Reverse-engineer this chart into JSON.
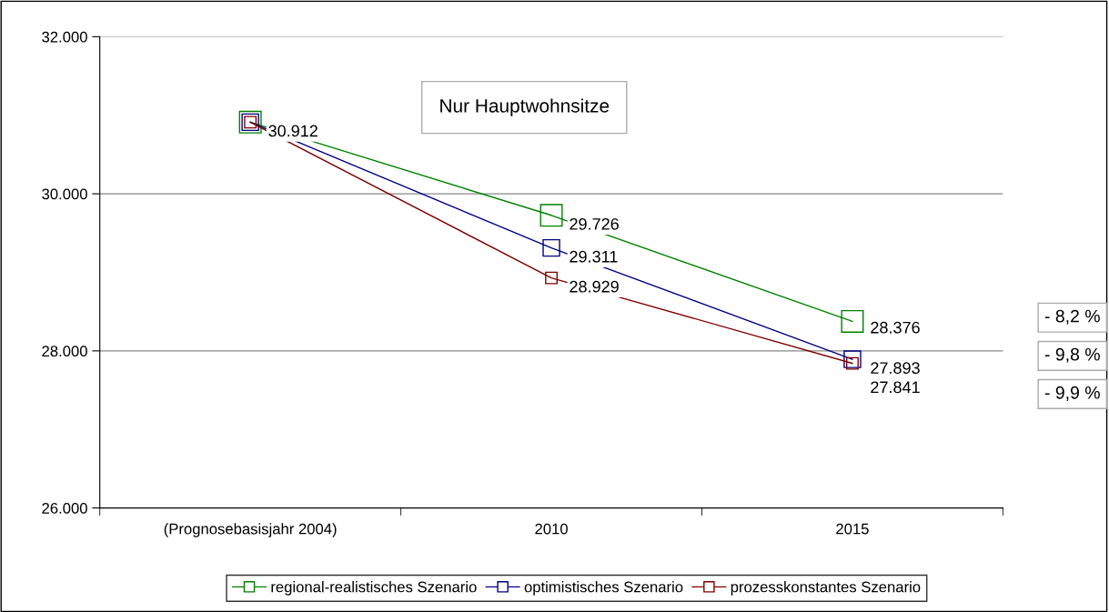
{
  "chart_data": {
    "type": "line",
    "categories": [
      "(Prognosebasisjahr 2004)",
      "2010",
      "2015"
    ],
    "series": [
      {
        "name": "regional-realistisches Szenario",
        "color": "#008000",
        "values": [
          30912,
          29726,
          28376
        ],
        "value_labels": [
          "30.912",
          "29.726",
          "28.376"
        ]
      },
      {
        "name": "optimistisches Szenario",
        "color": "#000080",
        "values": [
          30912,
          29311,
          27893
        ],
        "value_labels": [
          null,
          "29.311",
          "27.893"
        ]
      },
      {
        "name": "prozesskonstantes Szenario",
        "color": "#800000",
        "values": [
          30912,
          28929,
          27841
        ],
        "value_labels": [
          null,
          "28.929",
          "27.841"
        ]
      }
    ],
    "ylim": [
      26000,
      32000
    ],
    "yticks": [
      {
        "value": 26000,
        "label": "26.000"
      },
      {
        "value": 28000,
        "label": "28.000"
      },
      {
        "value": 30000,
        "label": "30.000"
      },
      {
        "value": 32000,
        "label": "32.000"
      }
    ],
    "grid": "y",
    "legend": "bottom",
    "marker": "square",
    "line_style": "solid",
    "annotations": [
      "Nur Hauptwohnsitze",
      "- 8,2 %",
      "- 9,8 %",
      "- 9,9 %"
    ]
  }
}
